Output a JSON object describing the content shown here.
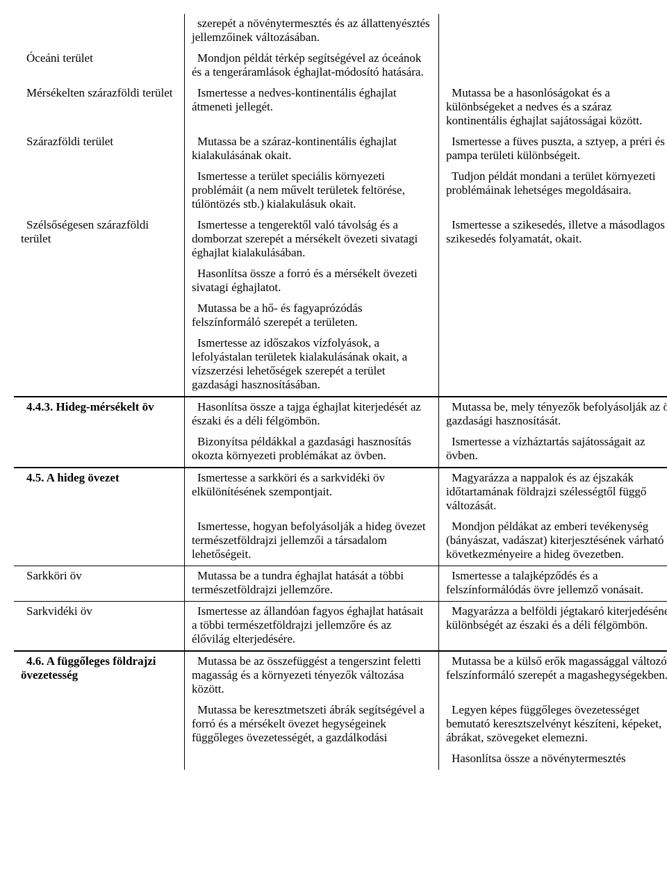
{
  "rows": [
    {
      "col1": "",
      "col2": "szerepét a növénytermesztés és az állattenyésztés jellemzőinek változásában.",
      "col3": ""
    },
    {
      "col1": "Óceáni terület",
      "col2": "Mondjon példát térkép segítségével az óceánok és a tengeráramlások éghajlat-módosító hatására.",
      "col3": ""
    },
    {
      "col1": "Mérsékelten szárazföldi terület",
      "col2": "Ismertesse a nedves-kontinentális éghajlat átmeneti jellegét.",
      "col3": "Mutassa be a hasonlóságokat és a különbségeket a nedves és a száraz kontinentális éghajlat sajátosságai között."
    },
    {
      "col1": "Szárazföldi terület",
      "col2": "Mutassa be a száraz-kontinentális éghajlat kialakulásának okait.",
      "col3": "Ismertesse a füves puszta, a sztyep, a préri és a pampa területi különbségeit."
    },
    {
      "col1": "",
      "col2": "Ismertesse a terület speciális környezeti problémáit (a nem művelt területek feltörése, túlöntözés stb.) kialakulásuk okait.",
      "col3": "Tudjon példát mondani a terület környezeti problémáinak lehetséges megoldásaira."
    },
    {
      "col1": "Szélsőségesen szárazföldi terület",
      "col2": "Ismertesse a tengerektől való távolság és a domborzat szerepét a mérsékelt övezeti sivatagi éghajlat kialakulásában.",
      "col3": "Ismertesse a szikesedés, illetve a másodlagos szikesedés folyamatát, okait."
    },
    {
      "col1": "",
      "col2": "Hasonlítsa össze a forró és a mérsékelt övezeti sivatagi éghajlatot.",
      "col3": ""
    },
    {
      "col1": "",
      "col2": "Mutassa be a hő- és fagyaprózódás felszínformáló szerepét a területen.",
      "col3": ""
    },
    {
      "col1": "",
      "col2": "Ismertesse az időszakos vízfolyások, a lefolyástalan területek kialakulásának okait, a vízszerzési lehetőségek szerepét a terület gazdasági hasznosításában.",
      "col3": ""
    },
    {
      "top": "thick",
      "col1_bold": true,
      "col1": "4.4.3. Hideg-mérsékelt öv",
      "col2": "Hasonlítsa össze a tajga éghajlat kiterjedését az északi és a déli félgömbön.",
      "col3": "Mutassa be, mely tényezők befolyásolják az öv gazdasági hasznosítását."
    },
    {
      "col1": "",
      "col2": "Bizonyítsa példákkal a gazdasági hasznosítás okozta környezeti problémákat az övben.",
      "col3": "Ismertesse a vízháztartás sajátosságait az övben."
    },
    {
      "top": "thick",
      "col1_bold": true,
      "col1": "4.5. A hideg övezet",
      "col2": "Ismertesse a sarkköri és a sarkvidéki öv elkülönítésének szempontjait.",
      "col3": "Magyarázza a nappalok és az éjszakák időtartamának földrajzi szélességtől függő változását."
    },
    {
      "col1": "",
      "col2": "Ismertesse, hogyan befolyásolják a hideg övezet természetföldrajzi jellemzői a társadalom lehetőségeit.",
      "col3": "Mondjon példákat az emberi tevékenység (bányászat, vadászat) kiterjesztésének várható következményeire a hideg övezetben."
    },
    {
      "top": "thin",
      "col1": "Sarkköri öv",
      "col2": "Mutassa be a tundra éghajlat hatását a többi természetföldrajzi jellemzőre.",
      "col3": "Ismertesse a talajképződés és a felszínformálódás övre jellemző vonásait."
    },
    {
      "top": "thin",
      "col1": "Sarkvidéki öv",
      "col2": "Ismertesse az állandóan fagyos éghajlat hatásait a többi természetföldrajzi jellemzőre és az élővilág elterjedésére.",
      "col3": "Magyarázza a belföldi jégtakaró kiterjedésének különbségét az északi és a déli félgömbön."
    },
    {
      "top": "thick",
      "col1_bold": true,
      "col1": "4.6. A függőleges földrajzi övezetesség",
      "col2": "Mutassa be az összefüggést a tengerszint feletti magasság és a környezeti tényezők változása között.",
      "col3": "Mutassa be a külső erők magassággal változó felszínformáló szerepét a magashegységekben."
    },
    {
      "col1": "",
      "col2": "Mutassa be keresztmetszeti ábrák segítségével a forró és a mérsékelt övezet hegységeinek függőleges övezetességét, a gazdálkodási",
      "col3": "Legyen képes függőleges övezetességet bemutató keresztszelvényt készíteni, képeket, ábrákat, szövegeket elemezni."
    },
    {
      "col1": "",
      "col2": "",
      "col3": "Hasonlítsa össze a növénytermesztés"
    }
  ]
}
